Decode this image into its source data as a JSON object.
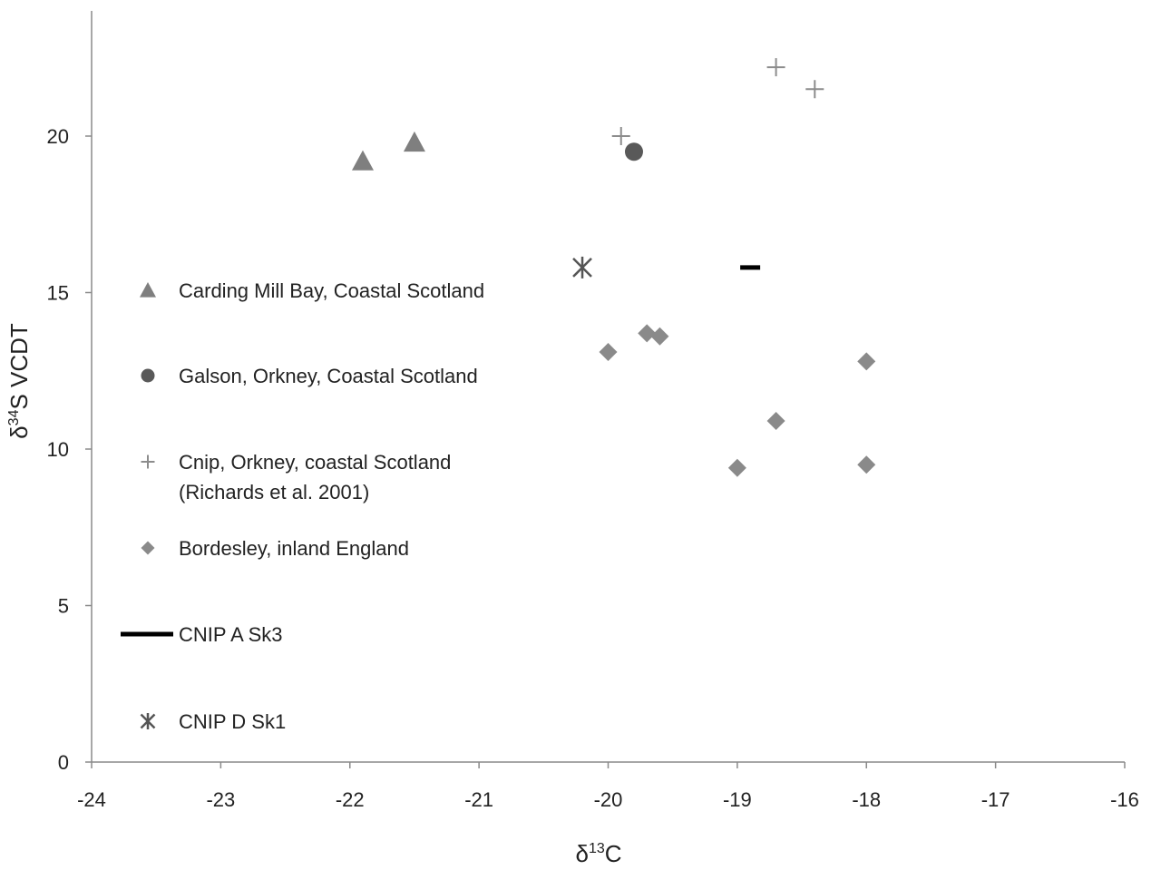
{
  "chart_data": {
    "type": "scatter",
    "title": "",
    "xlabel": "δ13C",
    "ylabel": "δ34S VCDT",
    "axis_label_parts": {
      "x": {
        "prefix": "δ",
        "sup": "13",
        "suffix": "C"
      },
      "y": {
        "prefix": "δ",
        "sup": "34",
        "suffix": "S VCDT"
      }
    },
    "xlim": [
      -24,
      -16
    ],
    "ylim": [
      0,
      24
    ],
    "x_ticks": [
      -24,
      -23,
      -22,
      -21,
      -20,
      -19,
      -18,
      -17,
      -16
    ],
    "y_ticks": [
      0,
      5,
      10,
      15,
      20
    ],
    "grid": false,
    "legend_position": "left (inside plot)",
    "series": [
      {
        "name": "Carding Mill Bay, Coastal Scotland",
        "marker": "triangle",
        "color": "#7f7f7f",
        "points": [
          [
            -21.9,
            19.2
          ],
          [
            -21.5,
            19.8
          ]
        ]
      },
      {
        "name": "Galson, Orkney, Coastal Scotland",
        "marker": "circle",
        "color": "#595959",
        "points": [
          [
            -19.8,
            19.5
          ]
        ]
      },
      {
        "name": "Cnip, Orkney, coastal Scotland",
        "name_line2": "(Richards et al. 2001)",
        "marker": "plus",
        "color": "#8c8c8c",
        "points": [
          [
            -19.9,
            20.0
          ],
          [
            -18.7,
            22.2
          ],
          [
            -18.4,
            21.5
          ]
        ]
      },
      {
        "name": "Bordesley, inland England",
        "marker": "diamond",
        "color": "#8a8a8a",
        "points": [
          [
            -20.0,
            13.1
          ],
          [
            -19.7,
            13.7
          ],
          [
            -19.6,
            13.6
          ],
          [
            -19.0,
            9.4
          ],
          [
            -18.7,
            10.9
          ],
          [
            -18.0,
            12.8
          ],
          [
            -18.0,
            9.5
          ]
        ]
      },
      {
        "name": "CNIP A Sk3",
        "marker": "dash",
        "color": "#000000",
        "points": [
          [
            -18.9,
            15.8
          ]
        ]
      },
      {
        "name": "CNIP D Sk1",
        "marker": "star",
        "color": "#555555",
        "points": [
          [
            -20.2,
            15.8
          ]
        ]
      }
    ]
  }
}
